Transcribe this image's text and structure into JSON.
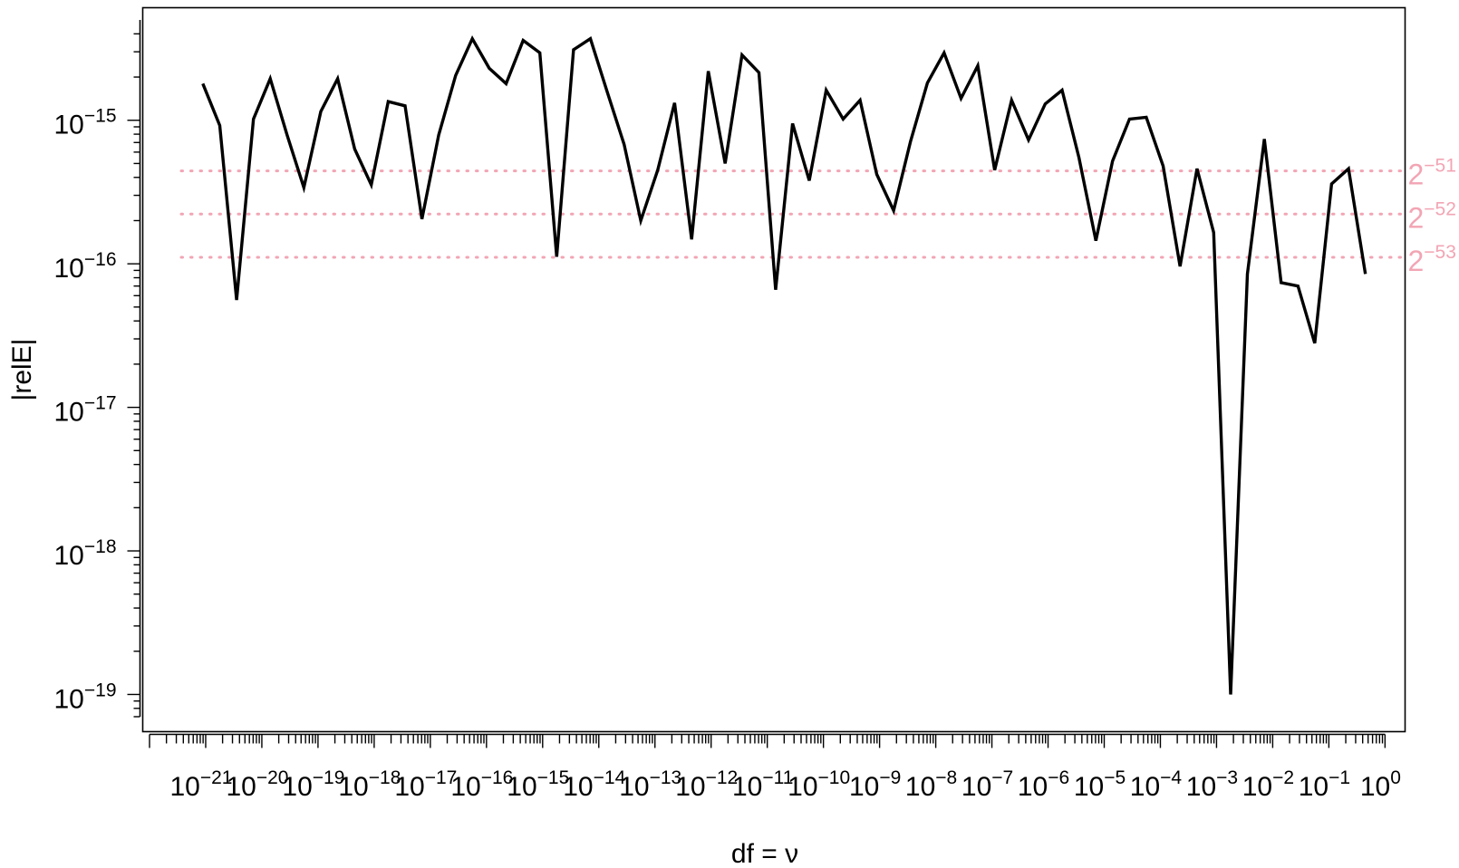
{
  "chart_data": {
    "type": "line",
    "xlabel": "df = ν",
    "ylabel": "|relE|",
    "x_scale": "log10",
    "y_scale": "log10",
    "xlim": [
      1e-22,
      1.6
    ],
    "ylim": [
      7e-20,
      5e-15
    ],
    "x_ticks": [
      {
        "base": "10",
        "exp": "−21",
        "value": 1e-21
      },
      {
        "base": "10",
        "exp": "−20",
        "value": 1e-20
      },
      {
        "base": "10",
        "exp": "−19",
        "value": 1e-19
      },
      {
        "base": "10",
        "exp": "−18",
        "value": 1e-18
      },
      {
        "base": "10",
        "exp": "−17",
        "value": 1e-17
      },
      {
        "base": "10",
        "exp": "−16",
        "value": 1e-16
      },
      {
        "base": "10",
        "exp": "−15",
        "value": 1e-15
      },
      {
        "base": "10",
        "exp": "−14",
        "value": 1e-14
      },
      {
        "base": "10",
        "exp": "−13",
        "value": 1e-13
      },
      {
        "base": "10",
        "exp": "−12",
        "value": 1e-12
      },
      {
        "base": "10",
        "exp": "−11",
        "value": 1e-11
      },
      {
        "base": "10",
        "exp": "−10",
        "value": 1e-10
      },
      {
        "base": "10",
        "exp": "−9",
        "value": 1e-09
      },
      {
        "base": "10",
        "exp": "−8",
        "value": 1e-08
      },
      {
        "base": "10",
        "exp": "−7",
        "value": 1e-07
      },
      {
        "base": "10",
        "exp": "−6",
        "value": 1e-06
      },
      {
        "base": "10",
        "exp": "−5",
        "value": 1e-05
      },
      {
        "base": "10",
        "exp": "−4",
        "value": 0.0001
      },
      {
        "base": "10",
        "exp": "−3",
        "value": 0.001
      },
      {
        "base": "10",
        "exp": "−2",
        "value": 0.01
      },
      {
        "base": "10",
        "exp": "−1",
        "value": 0.1
      },
      {
        "base": "10",
        "exp": "0",
        "value": 1
      }
    ],
    "y_ticks": [
      {
        "base": "10",
        "exp": "−15",
        "value": 1e-15
      },
      {
        "base": "10",
        "exp": "−16",
        "value": 1e-16
      },
      {
        "base": "10",
        "exp": "−17",
        "value": 1e-17
      },
      {
        "base": "10",
        "exp": "−18",
        "value": 1e-18
      },
      {
        "base": "10",
        "exp": "−19",
        "value": 1e-19
      }
    ],
    "reference_lines": [
      {
        "base": "2",
        "exp": "−51",
        "value": 4.440892e-16
      },
      {
        "base": "2",
        "exp": "−52",
        "value": 2.220446e-16
      },
      {
        "base": "2",
        "exp": "−53",
        "value": 1.110223e-16
      }
    ],
    "reference_color": "#f2a5b4",
    "line_color": "#000000",
    "series": [
      {
        "x": [
          8.9e-22,
          1.78e-21,
          3.55e-21,
          7.1e-21,
          1.41e-20,
          2.82e-20,
          5.6e-20,
          1.12e-19,
          2.24e-19,
          4.5e-19,
          8.9e-19,
          1.78e-18,
          3.55e-18,
          7.1e-18,
          1.41e-17,
          2.82e-17,
          5.6e-17,
          1.12e-16,
          2.24e-16,
          4.5e-16,
          8.9e-16,
          1.78e-15,
          3.55e-15,
          7.1e-15,
          1.41e-14,
          2.82e-14,
          5.6e-14,
          1.12e-13,
          2.24e-13,
          4.5e-13,
          8.9e-13,
          1.78e-12,
          3.55e-12,
          7.1e-12,
          1.41e-11,
          2.82e-11,
          5.6e-11,
          1.12e-10,
          2.24e-10,
          4.5e-10,
          8.9e-10,
          1.78e-09,
          3.55e-09,
          7.1e-09,
          1.41e-08,
          2.82e-08,
          5.6e-08,
          1.12e-07,
          2.24e-07,
          4.5e-07,
          8.9e-07,
          1.78e-06,
          3.55e-06,
          7.1e-06,
          1.41e-05,
          2.82e-05,
          5.6e-05,
          0.000112,
          0.000224,
          0.00045,
          0.00089,
          0.00178,
          0.00355,
          0.0071,
          0.0141,
          0.0282,
          0.056,
          0.112,
          0.224,
          0.447
        ],
        "y": [
          1.8e-15,
          9.2e-16,
          5.6e-17,
          1.02e-15,
          1.95e-15,
          7.9e-16,
          3.4e-16,
          1.15e-15,
          1.95e-15,
          6.3e-16,
          3.55e-16,
          1.35e-15,
          1.26e-15,
          2.05e-16,
          7.9e-16,
          2.05e-15,
          3.7e-15,
          2.3e-15,
          1.8e-15,
          3.6e-15,
          2.95e-15,
          1.12e-16,
          3.1e-15,
          3.7e-15,
          1.58e-15,
          6.8e-16,
          2e-16,
          4.5e-16,
          1.32e-15,
          1.48e-16,
          2.2e-15,
          5e-16,
          2.85e-15,
          2.15e-15,
          6.6e-17,
          9.5e-16,
          3.8e-16,
          1.62e-15,
          1.02e-15,
          1.38e-15,
          4.2e-16,
          2.35e-16,
          7.1e-16,
          1.82e-15,
          2.95e-15,
          1.42e-15,
          2.4e-15,
          4.5e-16,
          1.38e-15,
          7.3e-16,
          1.3e-15,
          1.62e-15,
          5.5e-16,
          1.45e-16,
          5.2e-16,
          1.02e-15,
          1.05e-15,
          4.8e-16,
          9.6e-17,
          4.6e-16,
          1.65e-16,
          1e-19,
          8.5e-17,
          7.4e-16,
          7.4e-17,
          7e-17,
          2.8e-17,
          3.6e-16,
          4.6e-16,
          8.5e-17
        ]
      }
    ]
  }
}
